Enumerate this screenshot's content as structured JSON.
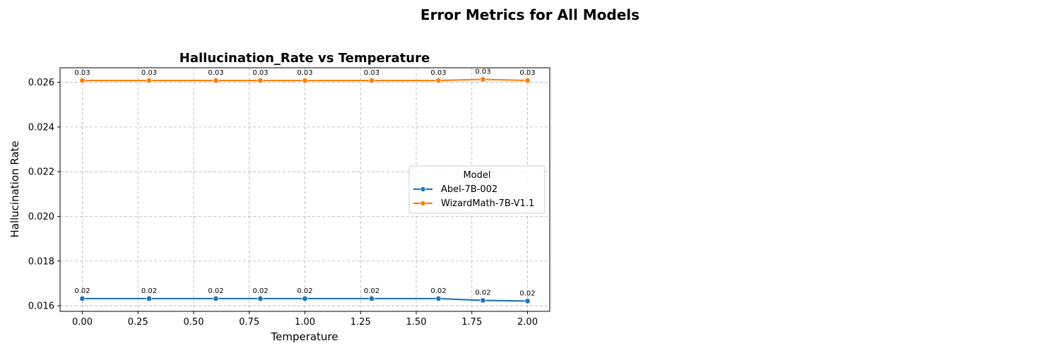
{
  "figure": {
    "suptitle": "Error Metrics for All Models"
  },
  "chart_data": {
    "type": "line",
    "title": "Hallucination_Rate vs Temperature",
    "xlabel": "Temperature",
    "ylabel": "Hallucination Rate",
    "xlim": [
      -0.1,
      2.1
    ],
    "ylim": [
      0.01575,
      0.02665
    ],
    "xticks": [
      0.0,
      0.25,
      0.5,
      0.75,
      1.0,
      1.25,
      1.5,
      1.75,
      2.0
    ],
    "xtick_labels": [
      "0.00",
      "0.25",
      "0.50",
      "0.75",
      "1.00",
      "1.25",
      "1.50",
      "1.75",
      "2.00"
    ],
    "yticks": [
      0.016,
      0.018,
      0.02,
      0.022,
      0.024,
      0.026
    ],
    "ytick_labels": [
      "0.016",
      "0.018",
      "0.020",
      "0.022",
      "0.024",
      "0.026"
    ],
    "grid": true,
    "x": [
      0.0,
      0.3,
      0.6,
      0.8,
      1.0,
      1.3,
      1.6,
      1.8,
      2.0
    ],
    "series": [
      {
        "name": "Abel-7B-002",
        "color": "#1f77b4",
        "values": [
          0.01632,
          0.01632,
          0.01632,
          0.01632,
          0.01632,
          0.01632,
          0.01632,
          0.01624,
          0.01621
        ],
        "labels": [
          "0.02",
          "0.02",
          "0.02",
          "0.02",
          "0.02",
          "0.02",
          "0.02",
          "0.02",
          "0.02"
        ]
      },
      {
        "name": "WizardMath-7B-V1.1",
        "color": "#ff7f0e",
        "values": [
          0.02608,
          0.02608,
          0.02608,
          0.02608,
          0.02608,
          0.02608,
          0.02608,
          0.02613,
          0.02608
        ],
        "labels": [
          "0.03",
          "0.03",
          "0.03",
          "0.03",
          "0.03",
          "0.03",
          "0.03",
          "0.03",
          "0.03"
        ]
      }
    ],
    "legend": {
      "title": "Model",
      "placement": "center-right"
    }
  }
}
